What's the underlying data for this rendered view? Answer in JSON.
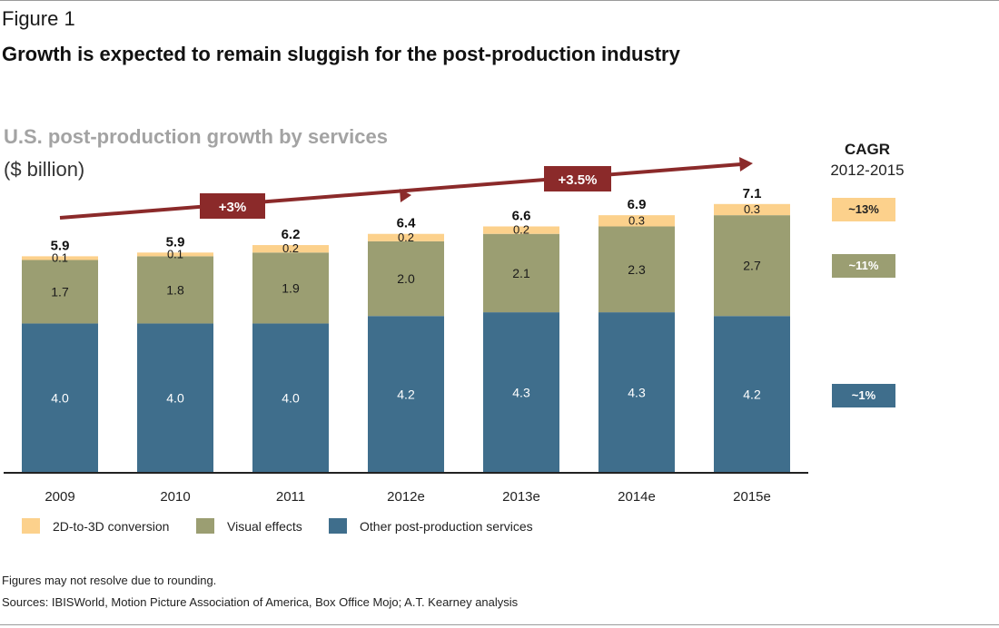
{
  "figure_label": "Figure 1",
  "headline": "Growth is expected to remain sluggish for the post-production industry",
  "cagr": {
    "title": "CAGR",
    "range": "2012-2015",
    "items": [
      {
        "label": "~13%",
        "color": "#fcd18c"
      },
      {
        "label": "~11%",
        "color": "#9b9e72"
      },
      {
        "label": "~1%",
        "color": "#3f6e8c"
      }
    ]
  },
  "chart_data": {
    "type": "bar",
    "stacked": true,
    "title": "U.S. post-production growth by services",
    "unit": "($ billion)",
    "categories": [
      "2009",
      "2010",
      "2011",
      "2012e",
      "2013e",
      "2014e",
      "2015e"
    ],
    "series": [
      {
        "name": "Other post-production services",
        "color": "#3f6e8c",
        "values": [
          4.0,
          4.0,
          4.0,
          4.2,
          4.3,
          4.3,
          4.2
        ],
        "labels": [
          "4.0",
          "4.0",
          "4.0",
          "4.2",
          "4.3",
          "4.3",
          "4.2"
        ]
      },
      {
        "name": "Visual effects",
        "color": "#9b9e72",
        "values": [
          1.7,
          1.8,
          1.9,
          2.0,
          2.1,
          2.3,
          2.7
        ],
        "labels": [
          "1.7",
          "1.8",
          "1.9",
          "2.0",
          "2.1",
          "2.3",
          "2.7"
        ]
      },
      {
        "name": "2D-to-3D conversion",
        "color": "#fcd18c",
        "values": [
          0.1,
          0.1,
          0.2,
          0.2,
          0.2,
          0.3,
          0.3
        ],
        "labels": [
          "0.1",
          "0.1",
          "0.2",
          "0.2",
          "0.2",
          "0.3",
          "0.3"
        ]
      }
    ],
    "totals": [
      "5.9",
      "5.9",
      "6.2",
      "6.4",
      "6.6",
      "6.9",
      "7.1"
    ],
    "growth_annotations": [
      {
        "label": "+3%",
        "from": "2009",
        "to": "2012e"
      },
      {
        "label": "+3.5%",
        "from": "2012e",
        "to": "2015e"
      }
    ],
    "annotation_color": "#8b2a2a",
    "ylim": [
      0,
      7.9
    ],
    "grid": false
  },
  "legend_items": [
    {
      "label": "2D-to-3D conversion",
      "color": "#fcd18c"
    },
    {
      "label": "Visual effects",
      "color": "#9b9e72"
    },
    {
      "label": "Other post-production services",
      "color": "#3f6e8c"
    }
  ],
  "notes": {
    "rounding": "Figures may not resolve due to rounding.",
    "sources": "Sources: IBISWorld, Motion Picture Association of America, Box Office Mojo; A.T. Kearney analysis"
  }
}
